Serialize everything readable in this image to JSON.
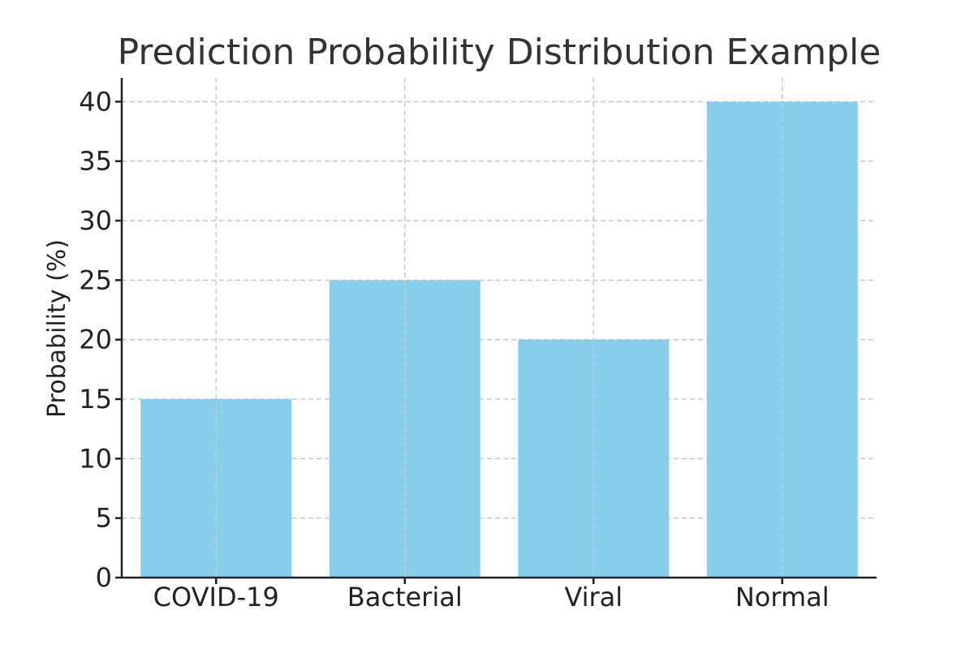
{
  "chart_data": {
    "type": "bar",
    "title": "Prediction Probability Distribution Example",
    "xlabel": "",
    "ylabel": "Probability (%)",
    "categories": [
      "COVID-19",
      "Bacterial",
      "Viral",
      "Normal"
    ],
    "values": [
      15,
      25,
      20,
      40
    ],
    "ylim": [
      0,
      42
    ],
    "yticks": [
      0,
      5,
      10,
      15,
      20,
      25,
      30,
      35,
      40
    ],
    "grid": true,
    "bar_color": "#87CEEB",
    "legend": "none"
  }
}
